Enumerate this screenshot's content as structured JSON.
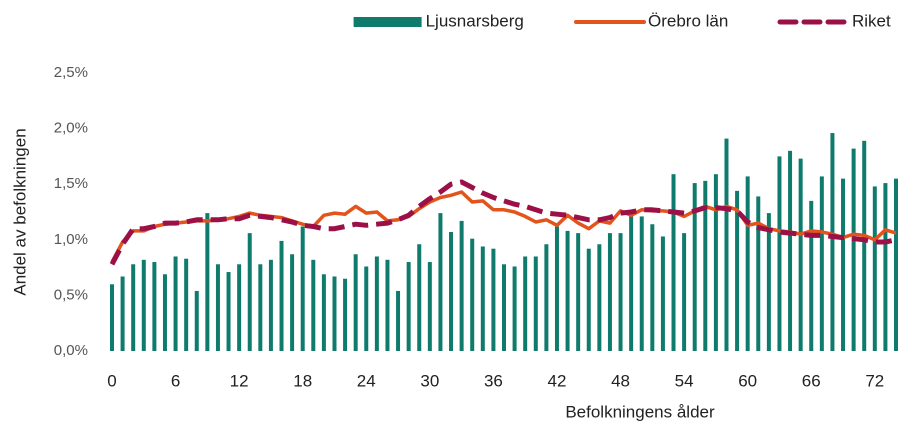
{
  "chart_data": {
    "type": "bar",
    "y_label": "Andel av befolkningen",
    "x_label": "Befolkningens ålder",
    "categories": [
      "0",
      null,
      null,
      null,
      null,
      null,
      "6",
      null,
      null,
      null,
      null,
      null,
      "12",
      null,
      null,
      null,
      null,
      null,
      "18",
      null,
      null,
      null,
      null,
      null,
      "24",
      null,
      null,
      null,
      null,
      null,
      "30",
      null,
      null,
      null,
      null,
      null,
      "36",
      null,
      null,
      null,
      null,
      null,
      "42",
      null,
      null,
      null,
      null,
      null,
      "48",
      null,
      null,
      null,
      null,
      null,
      "54",
      null,
      null,
      null,
      null,
      null,
      "60",
      null,
      null,
      null,
      null,
      null,
      "66",
      null,
      null,
      null,
      null,
      null,
      "72",
      null,
      null
    ],
    "series": [
      {
        "name": "Ljusnarsberg",
        "type": "bar",
        "color": "#0f7b6c",
        "values": [
          0.6,
          0.67,
          0.78,
          0.82,
          0.8,
          0.69,
          0.85,
          0.83,
          0.54,
          1.24,
          0.78,
          0.71,
          0.78,
          1.06,
          0.78,
          0.82,
          0.99,
          0.87,
          1.12,
          0.82,
          0.69,
          0.67,
          0.65,
          0.87,
          0.76,
          0.85,
          0.82,
          0.54,
          0.8,
          0.96,
          0.8,
          1.24,
          1.07,
          1.17,
          1.01,
          0.94,
          0.92,
          0.78,
          0.76,
          0.85,
          0.85,
          0.96,
          1.12,
          1.08,
          1.06,
          0.92,
          0.96,
          1.06,
          1.06,
          1.24,
          1.21,
          1.14,
          1.03,
          1.59,
          1.06,
          1.51,
          1.53,
          1.59,
          1.91,
          1.44,
          1.57,
          1.39,
          1.24,
          1.75,
          1.8,
          1.73,
          1.35,
          1.57,
          1.96,
          1.55,
          1.82,
          1.89,
          1.48,
          1.51,
          1.55
        ]
      },
      {
        "name": "Örebro län",
        "type": "line",
        "color": "#e2541b",
        "values": [
          0.8,
          0.98,
          1.08,
          1.08,
          1.12,
          1.14,
          1.15,
          1.16,
          1.17,
          1.17,
          1.18,
          1.19,
          1.21,
          1.24,
          1.22,
          1.21,
          1.2,
          1.17,
          1.14,
          1.12,
          1.22,
          1.24,
          1.23,
          1.3,
          1.24,
          1.25,
          1.17,
          1.18,
          1.21,
          1.28,
          1.34,
          1.38,
          1.4,
          1.43,
          1.34,
          1.35,
          1.27,
          1.27,
          1.25,
          1.21,
          1.16,
          1.18,
          1.13,
          1.22,
          1.15,
          1.1,
          1.17,
          1.15,
          1.26,
          1.22,
          1.27,
          1.26,
          1.26,
          1.25,
          1.21,
          1.26,
          1.3,
          1.27,
          1.3,
          1.27,
          1.13,
          1.15,
          1.1,
          1.08,
          1.07,
          1.05,
          1.08,
          1.07,
          1.05,
          1.02,
          1.05,
          1.04,
          1.0,
          1.09,
          1.06
        ]
      },
      {
        "name": "Riket",
        "type": "line",
        "dashed": true,
        "color": "#9c1048",
        "values": [
          0.78,
          0.96,
          1.1,
          1.1,
          1.12,
          1.15,
          1.15,
          1.16,
          1.18,
          1.18,
          1.18,
          1.19,
          1.19,
          1.22,
          1.21,
          1.2,
          1.18,
          1.16,
          1.13,
          1.12,
          1.1,
          1.1,
          1.12,
          1.14,
          1.13,
          1.14,
          1.15,
          1.18,
          1.22,
          1.3,
          1.37,
          1.43,
          1.5,
          1.52,
          1.47,
          1.42,
          1.38,
          1.35,
          1.32,
          1.3,
          1.27,
          1.24,
          1.23,
          1.22,
          1.2,
          1.18,
          1.18,
          1.2,
          1.24,
          1.25,
          1.27,
          1.27,
          1.26,
          1.25,
          1.24,
          1.26,
          1.29,
          1.29,
          1.28,
          1.26,
          1.16,
          1.11,
          1.09,
          1.07,
          1.06,
          1.05,
          1.04,
          1.04,
          1.03,
          1.02,
          1.01,
          1.0,
          0.98,
          0.98,
          1.0
        ]
      }
    ],
    "ylim": [
      0,
      2.5
    ],
    "yticks": [
      {
        "value": 0,
        "label": "0,0%"
      },
      {
        "value": 0.5,
        "label": "0,5%"
      },
      {
        "value": 1,
        "label": "1,0%"
      },
      {
        "value": 1.5,
        "label": "1,5%"
      },
      {
        "value": 2,
        "label": "2,0%"
      },
      {
        "value": 2.5,
        "label": "2,5%"
      }
    ],
    "legend": "top-right"
  }
}
